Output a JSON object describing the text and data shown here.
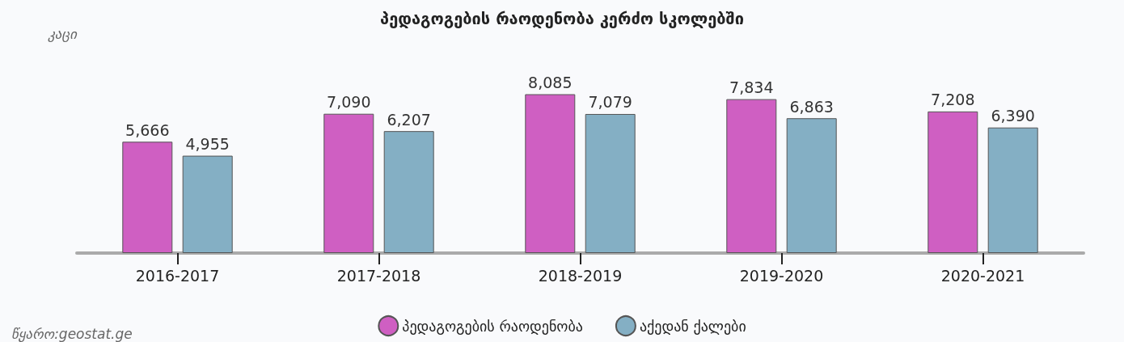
{
  "chart_data": {
    "type": "bar",
    "title": "პედაგოგების რაოდენობა კერძო სკოლებში",
    "ylabel": "კაცი",
    "categories": [
      "2016-2017",
      "2017-2018",
      "2018-2019",
      "2019-2020",
      "2020-2021"
    ],
    "series": [
      {
        "name": "პედაგოგების რაოდენობა",
        "color": "#cf5fc2",
        "values": [
          5666,
          7090,
          8085,
          7834,
          7208
        ],
        "value_labels": [
          "5,666",
          "7,090",
          "8,085",
          "7,834",
          "7,208"
        ]
      },
      {
        "name": "აქედან ქალები",
        "color": "#84afc4",
        "values": [
          4955,
          6207,
          7079,
          6863,
          6390
        ],
        "value_labels": [
          "4,955",
          "6,207",
          "7,079",
          "6,863",
          "6,390"
        ]
      }
    ],
    "tick_labels": "x",
    "legend": "bottom",
    "annotations": [
      "წყარო:geostat.ge"
    ]
  }
}
